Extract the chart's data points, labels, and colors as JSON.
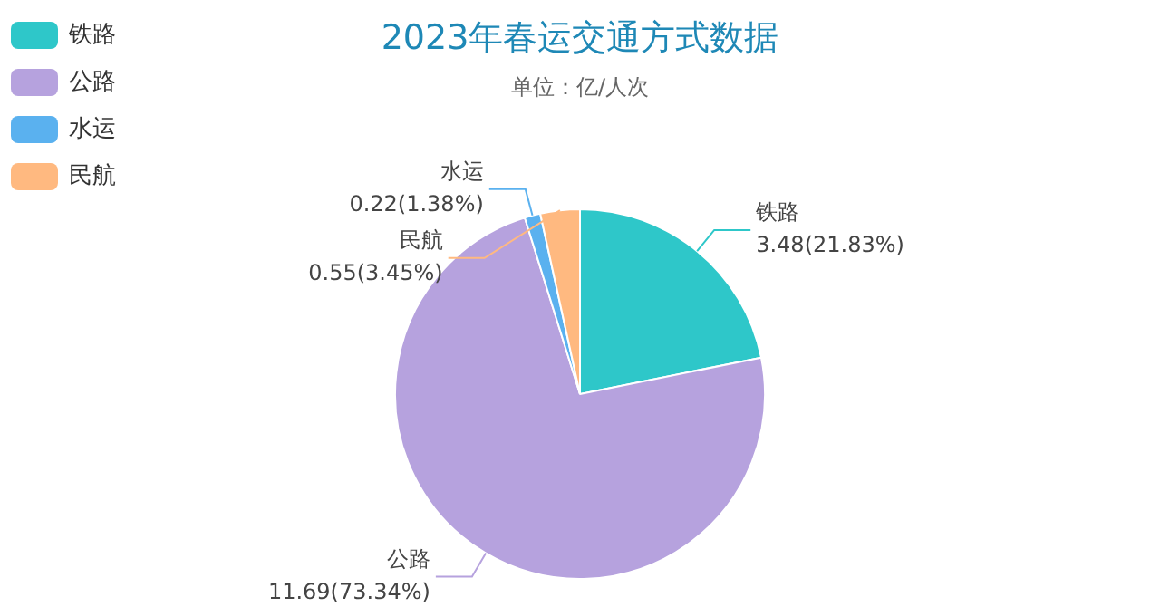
{
  "chart_data": {
    "type": "pie",
    "title": "2023年春运交通方式数据",
    "subtitle": "单位：亿/人次",
    "legend": "top left",
    "categories": [
      "铁路",
      "公路",
      "水运",
      "民航"
    ],
    "values": [
      3.48,
      11.69,
      0.22,
      0.55
    ],
    "colors": [
      "#2ec7c9",
      "#b6a2de",
      "#5ab1ef",
      "#ffb980"
    ],
    "value_labels": [
      "3.48(21.83%)",
      "11.69(73.34%)",
      "0.22(1.38%)",
      "0.55(3.45%)"
    ]
  }
}
